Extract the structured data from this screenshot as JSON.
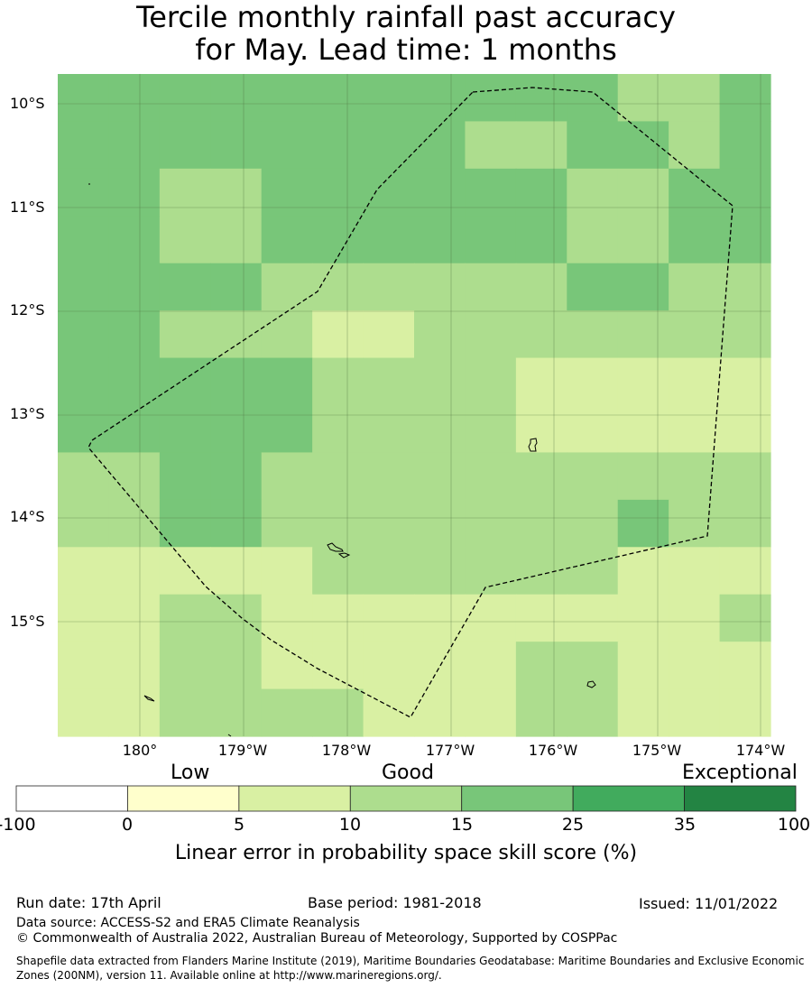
{
  "title_line1": "Tercile monthly rainfall past accuracy",
  "title_line2": "for May. Lead time: 1 months",
  "lat_labels": [
    "10°S",
    "11°S",
    "12°S",
    "13°S",
    "14°S",
    "15°S"
  ],
  "lon_labels": [
    "180°",
    "179°W",
    "178°W",
    "177°W",
    "176°W",
    "175°W",
    "174°W"
  ],
  "skill_grid_columns": [
    "179.5°E",
    "180°",
    "179.5°W",
    "179°W",
    "178.5°W",
    "178°W",
    "177.5°W",
    "177°W",
    "176.5°W",
    "176°W",
    "175.5°W",
    "175°W",
    "174.5°W",
    "174°W"
  ],
  "skill_grid_rows": [
    "9.5°S",
    "10°S",
    "10.5°S",
    "11°S",
    "11.5°S",
    "12°S",
    "12.5°S",
    "13°S",
    "13.5°S",
    "14°S",
    "14.5°S",
    "15°S",
    "15.5°S",
    "16°S"
  ],
  "skill_grid_bin_index": [
    [
      4,
      4,
      4,
      4,
      4,
      4,
      4,
      4,
      4,
      4,
      4,
      3,
      3,
      4
    ],
    [
      4,
      4,
      4,
      4,
      4,
      4,
      4,
      4,
      3,
      3,
      4,
      4,
      3,
      4
    ],
    [
      4,
      4,
      3,
      3,
      4,
      4,
      4,
      4,
      4,
      4,
      3,
      3,
      4,
      4
    ],
    [
      4,
      4,
      3,
      3,
      4,
      4,
      4,
      4,
      4,
      4,
      3,
      3,
      4,
      4
    ],
    [
      4,
      4,
      4,
      4,
      3,
      3,
      3,
      3,
      3,
      3,
      4,
      4,
      3,
      3
    ],
    [
      4,
      4,
      3,
      3,
      3,
      2,
      2,
      3,
      3,
      3,
      3,
      3,
      3,
      3
    ],
    [
      4,
      4,
      4,
      4,
      4,
      3,
      3,
      3,
      3,
      2,
      2,
      2,
      2,
      2
    ],
    [
      4,
      4,
      4,
      4,
      4,
      3,
      3,
      3,
      3,
      2,
      2,
      2,
      2,
      2
    ],
    [
      3,
      3,
      4,
      4,
      3,
      3,
      3,
      3,
      3,
      3,
      3,
      3,
      3,
      3
    ],
    [
      3,
      3,
      4,
      4,
      3,
      3,
      3,
      3,
      3,
      3,
      3,
      4,
      3,
      3
    ],
    [
      2,
      2,
      2,
      2,
      2,
      3,
      3,
      3,
      3,
      3,
      3,
      2,
      2,
      2
    ],
    [
      2,
      2,
      3,
      3,
      2,
      2,
      2,
      2,
      2,
      2,
      2,
      2,
      2,
      3
    ],
    [
      2,
      2,
      3,
      3,
      2,
      2,
      2,
      2,
      2,
      3,
      3,
      2,
      2,
      2
    ],
    [
      2,
      2,
      3,
      3,
      3,
      3,
      2,
      2,
      2,
      3,
      3,
      2,
      2,
      2
    ]
  ],
  "colorbar": {
    "category_labels": [
      "Low",
      "Good",
      "Exceptional"
    ],
    "ticks": [
      "-100",
      "0",
      "5",
      "10",
      "15",
      "25",
      "35",
      "100"
    ],
    "colors": [
      "#ffffff",
      "#ffffcc",
      "#d9f0a3",
      "#addd8e",
      "#78c679",
      "#41ab5d",
      "#238443"
    ],
    "title": "Linear error in probability space skill score (%)"
  },
  "footer": {
    "run_date": "Run date: 17th April",
    "base_period": "Base period: 1981-2018",
    "issued": "Issued: 11/01/2022",
    "data_source": "Data source: ACCESS-S2 and ERA5 Climate Reanalysis",
    "copyright": "© Commonwealth of Australia 2022, Australian Bureau of Meteorology, Supported by COSPPac",
    "shapefile": "Shapefile data extracted from Flanders Marine Institute (2019), Maritime Boundaries Geodatabase: Maritime Boundaries and Exclusive Economic Zones (200NM), version 11. Available online at http://www.marineregions.org/."
  }
}
